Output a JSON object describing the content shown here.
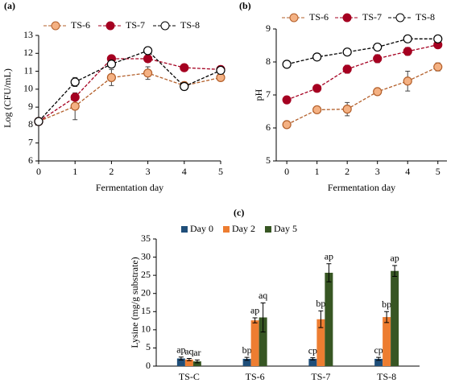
{
  "chart_data": [
    {
      "type": "line",
      "panel": "(a)",
      "x_label": "Fermentation day",
      "y_label": "Log (CFU/mL)",
      "x": [
        0,
        1,
        2,
        3,
        4,
        5
      ],
      "xlim": [
        0,
        5
      ],
      "xticks": [
        0,
        1,
        2,
        3,
        4,
        5
      ],
      "ylim": [
        6,
        13
      ],
      "yticks": [
        6,
        7,
        8,
        9,
        10,
        11,
        12,
        13
      ],
      "legend": "top",
      "series": [
        {
          "name": "TS-6",
          "color": "#b35f2a",
          "marker_fill": "#f4b183",
          "values": [
            8.2,
            9.05,
            10.65,
            10.9,
            10.2,
            10.65
          ],
          "errors": [
            0.1,
            0.75,
            0.45,
            0.35,
            0.15,
            0.15
          ]
        },
        {
          "name": "TS-7",
          "color": "#a50021",
          "marker_fill": "#a50021",
          "values": [
            8.2,
            9.55,
            11.7,
            11.7,
            11.2,
            11.1
          ],
          "errors": [
            0.1,
            0.15,
            0.15,
            0.2,
            0.1,
            0.1
          ]
        },
        {
          "name": "TS-8",
          "color": "#000000",
          "marker_fill": "#ffffff",
          "values": [
            8.2,
            10.4,
            11.4,
            12.15,
            10.15,
            11.05
          ],
          "errors": [
            0.1,
            0.25,
            0.2,
            0.15,
            0.15,
            0.15
          ]
        }
      ]
    },
    {
      "type": "line",
      "panel": "(b)",
      "x_label": "Fermentation day",
      "y_label": "pH",
      "x": [
        0,
        1,
        2,
        3,
        4,
        5
      ],
      "xlim": [
        -0.35,
        5.3
      ],
      "xticks": [
        0,
        1,
        2,
        3,
        4,
        5
      ],
      "ylim": [
        5,
        9
      ],
      "yticks": [
        5,
        6,
        7,
        8,
        9
      ],
      "legend": "top",
      "series": [
        {
          "name": "TS-6",
          "color": "#b35f2a",
          "marker_fill": "#f4b183",
          "values": [
            6.1,
            6.55,
            6.57,
            7.1,
            7.42,
            7.85
          ],
          "errors": [
            0.03,
            0.05,
            0.2,
            0.05,
            0.3,
            0.12
          ]
        },
        {
          "name": "TS-7",
          "color": "#a50021",
          "marker_fill": "#a50021",
          "values": [
            6.85,
            7.2,
            7.78,
            8.1,
            8.32,
            8.52
          ],
          "errors": [
            0.03,
            0.05,
            0.12,
            0.12,
            0.12,
            0.08
          ]
        },
        {
          "name": "TS-8",
          "color": "#000000",
          "marker_fill": "#ffffff",
          "values": [
            7.93,
            8.15,
            8.3,
            8.45,
            8.7,
            8.7
          ],
          "errors": [
            0.03,
            0.05,
            0.05,
            0.05,
            0.05,
            0.05
          ]
        }
      ]
    },
    {
      "type": "bar",
      "panel": "(c)",
      "y_label": "Lysine (mg/g  substrate)",
      "categories": [
        "TS-C",
        "TS-6",
        "TS-7",
        "TS-8"
      ],
      "ylim": [
        0,
        35
      ],
      "yticks": [
        0,
        5,
        10,
        15,
        20,
        25,
        30,
        35
      ],
      "legend": "top",
      "series": [
        {
          "name": "Day 0",
          "color": "#1f4e79",
          "values": [
            2.1,
            2.0,
            2.0,
            2.0
          ],
          "errors": [
            0.4,
            0.4,
            0.3,
            0.4
          ],
          "annotations": [
            "ap",
            "bp",
            "cp",
            "cp"
          ]
        },
        {
          "name": "Day 2",
          "color": "#ed7d31",
          "values": [
            1.8,
            12.6,
            12.9,
            13.5
          ],
          "errors": [
            0.3,
            0.7,
            2.3,
            1.5
          ],
          "annotations": [
            "aq",
            "ap",
            "bp",
            "bp"
          ]
        },
        {
          "name": "Day 5",
          "color": "#375623",
          "values": [
            1.3,
            13.4,
            25.7,
            26.2
          ],
          "errors": [
            0.4,
            4.0,
            2.5,
            1.5
          ],
          "annotations": [
            "ar",
            "aq",
            "ap",
            "ap"
          ]
        }
      ]
    }
  ]
}
